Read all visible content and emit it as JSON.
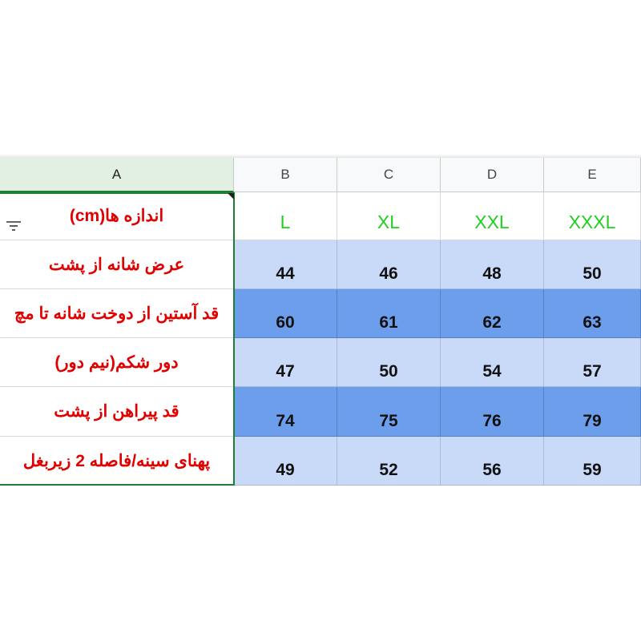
{
  "columns": [
    "A",
    "B",
    "C",
    "D",
    "E"
  ],
  "table": {
    "header": [
      "اندازه ها(cm)",
      "L",
      "XL",
      "XXL",
      "XXXL"
    ],
    "rows": [
      [
        "عرض شانه از پشت",
        44,
        46,
        48,
        50
      ],
      [
        "قد آستین از دوخت شانه تا مچ",
        60,
        61,
        62,
        63
      ],
      [
        "دور شکم(نیم دور)",
        47,
        50,
        54,
        57
      ],
      [
        "قد پیراهن از پشت",
        74,
        75,
        76,
        79
      ],
      [
        "پهنای سینه/فاصله 2 زیربغل",
        49,
        52,
        56,
        59
      ]
    ]
  }
}
